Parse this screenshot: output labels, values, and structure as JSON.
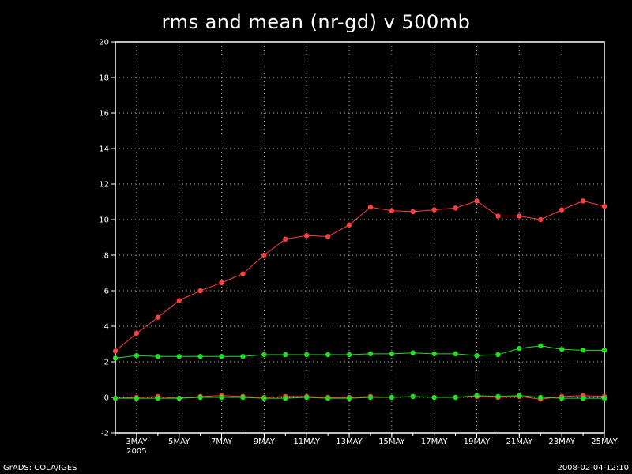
{
  "footer": {
    "left": "GrADS: COLA/IGES",
    "right": "2008-02-04-12:10"
  },
  "chart_data": {
    "type": "line",
    "title": "rms and mean (nr-gd) v 500mb",
    "xlabel": "",
    "ylabel": "",
    "x": [
      2,
      3,
      4,
      5,
      6,
      7,
      8,
      9,
      10,
      11,
      12,
      13,
      14,
      15,
      16,
      17,
      18,
      19,
      20,
      21,
      22,
      23,
      24,
      25
    ],
    "xlim": [
      2,
      25
    ],
    "xticks": [
      3,
      5,
      7,
      9,
      11,
      13,
      15,
      17,
      19,
      21,
      23,
      25
    ],
    "xtick_labels": [
      "3MAY",
      "5MAY",
      "7MAY",
      "9MAY",
      "11MAY",
      "13MAY",
      "15MAY",
      "17MAY",
      "19MAY",
      "21MAY",
      "23MAY",
      "25MAY"
    ],
    "year_label": "2005",
    "ylim": [
      -2,
      20
    ],
    "yticks": [
      -2,
      0,
      2,
      4,
      6,
      8,
      10,
      12,
      14,
      16,
      18,
      20
    ],
    "grid": true,
    "colors": {
      "red": "#ff4040",
      "green": "#22dd22",
      "grid": "#bbbbbb",
      "axes": "#ffffff"
    },
    "series": [
      {
        "color": "#ff4040",
        "values": [
          2.6,
          3.6,
          4.5,
          5.45,
          6.0,
          6.45,
          6.95,
          8.0,
          8.9,
          9.1,
          9.05,
          9.7,
          10.7,
          10.5,
          10.45,
          10.55,
          10.65,
          11.05,
          10.2,
          10.2,
          10.0,
          10.55,
          11.05,
          10.75
        ]
      },
      {
        "color": "#22dd22",
        "values": [
          2.2,
          2.35,
          2.3,
          2.3,
          2.3,
          2.3,
          2.3,
          2.4,
          2.4,
          2.4,
          2.4,
          2.4,
          2.45,
          2.45,
          2.5,
          2.45,
          2.45,
          2.35,
          2.4,
          2.75,
          2.9,
          2.7,
          2.65,
          2.65
        ]
      },
      {
        "color": "#ff4040",
        "values": [
          -0.05,
          0.0,
          0.05,
          -0.05,
          0.05,
          0.1,
          0.05,
          0.0,
          0.05,
          0.05,
          0.0,
          0.0,
          0.05,
          0.0,
          0.05,
          0.0,
          0.0,
          0.05,
          0.0,
          0.05,
          -0.1,
          0.05,
          0.1,
          0.05
        ]
      },
      {
        "color": "#22dd22",
        "values": [
          -0.05,
          -0.05,
          -0.05,
          -0.05,
          0.0,
          0.0,
          0.0,
          -0.05,
          -0.05,
          0.0,
          -0.05,
          -0.05,
          0.0,
          0.0,
          0.05,
          0.0,
          0.0,
          0.1,
          0.05,
          0.1,
          0.0,
          -0.05,
          -0.05,
          -0.05
        ]
      }
    ]
  }
}
